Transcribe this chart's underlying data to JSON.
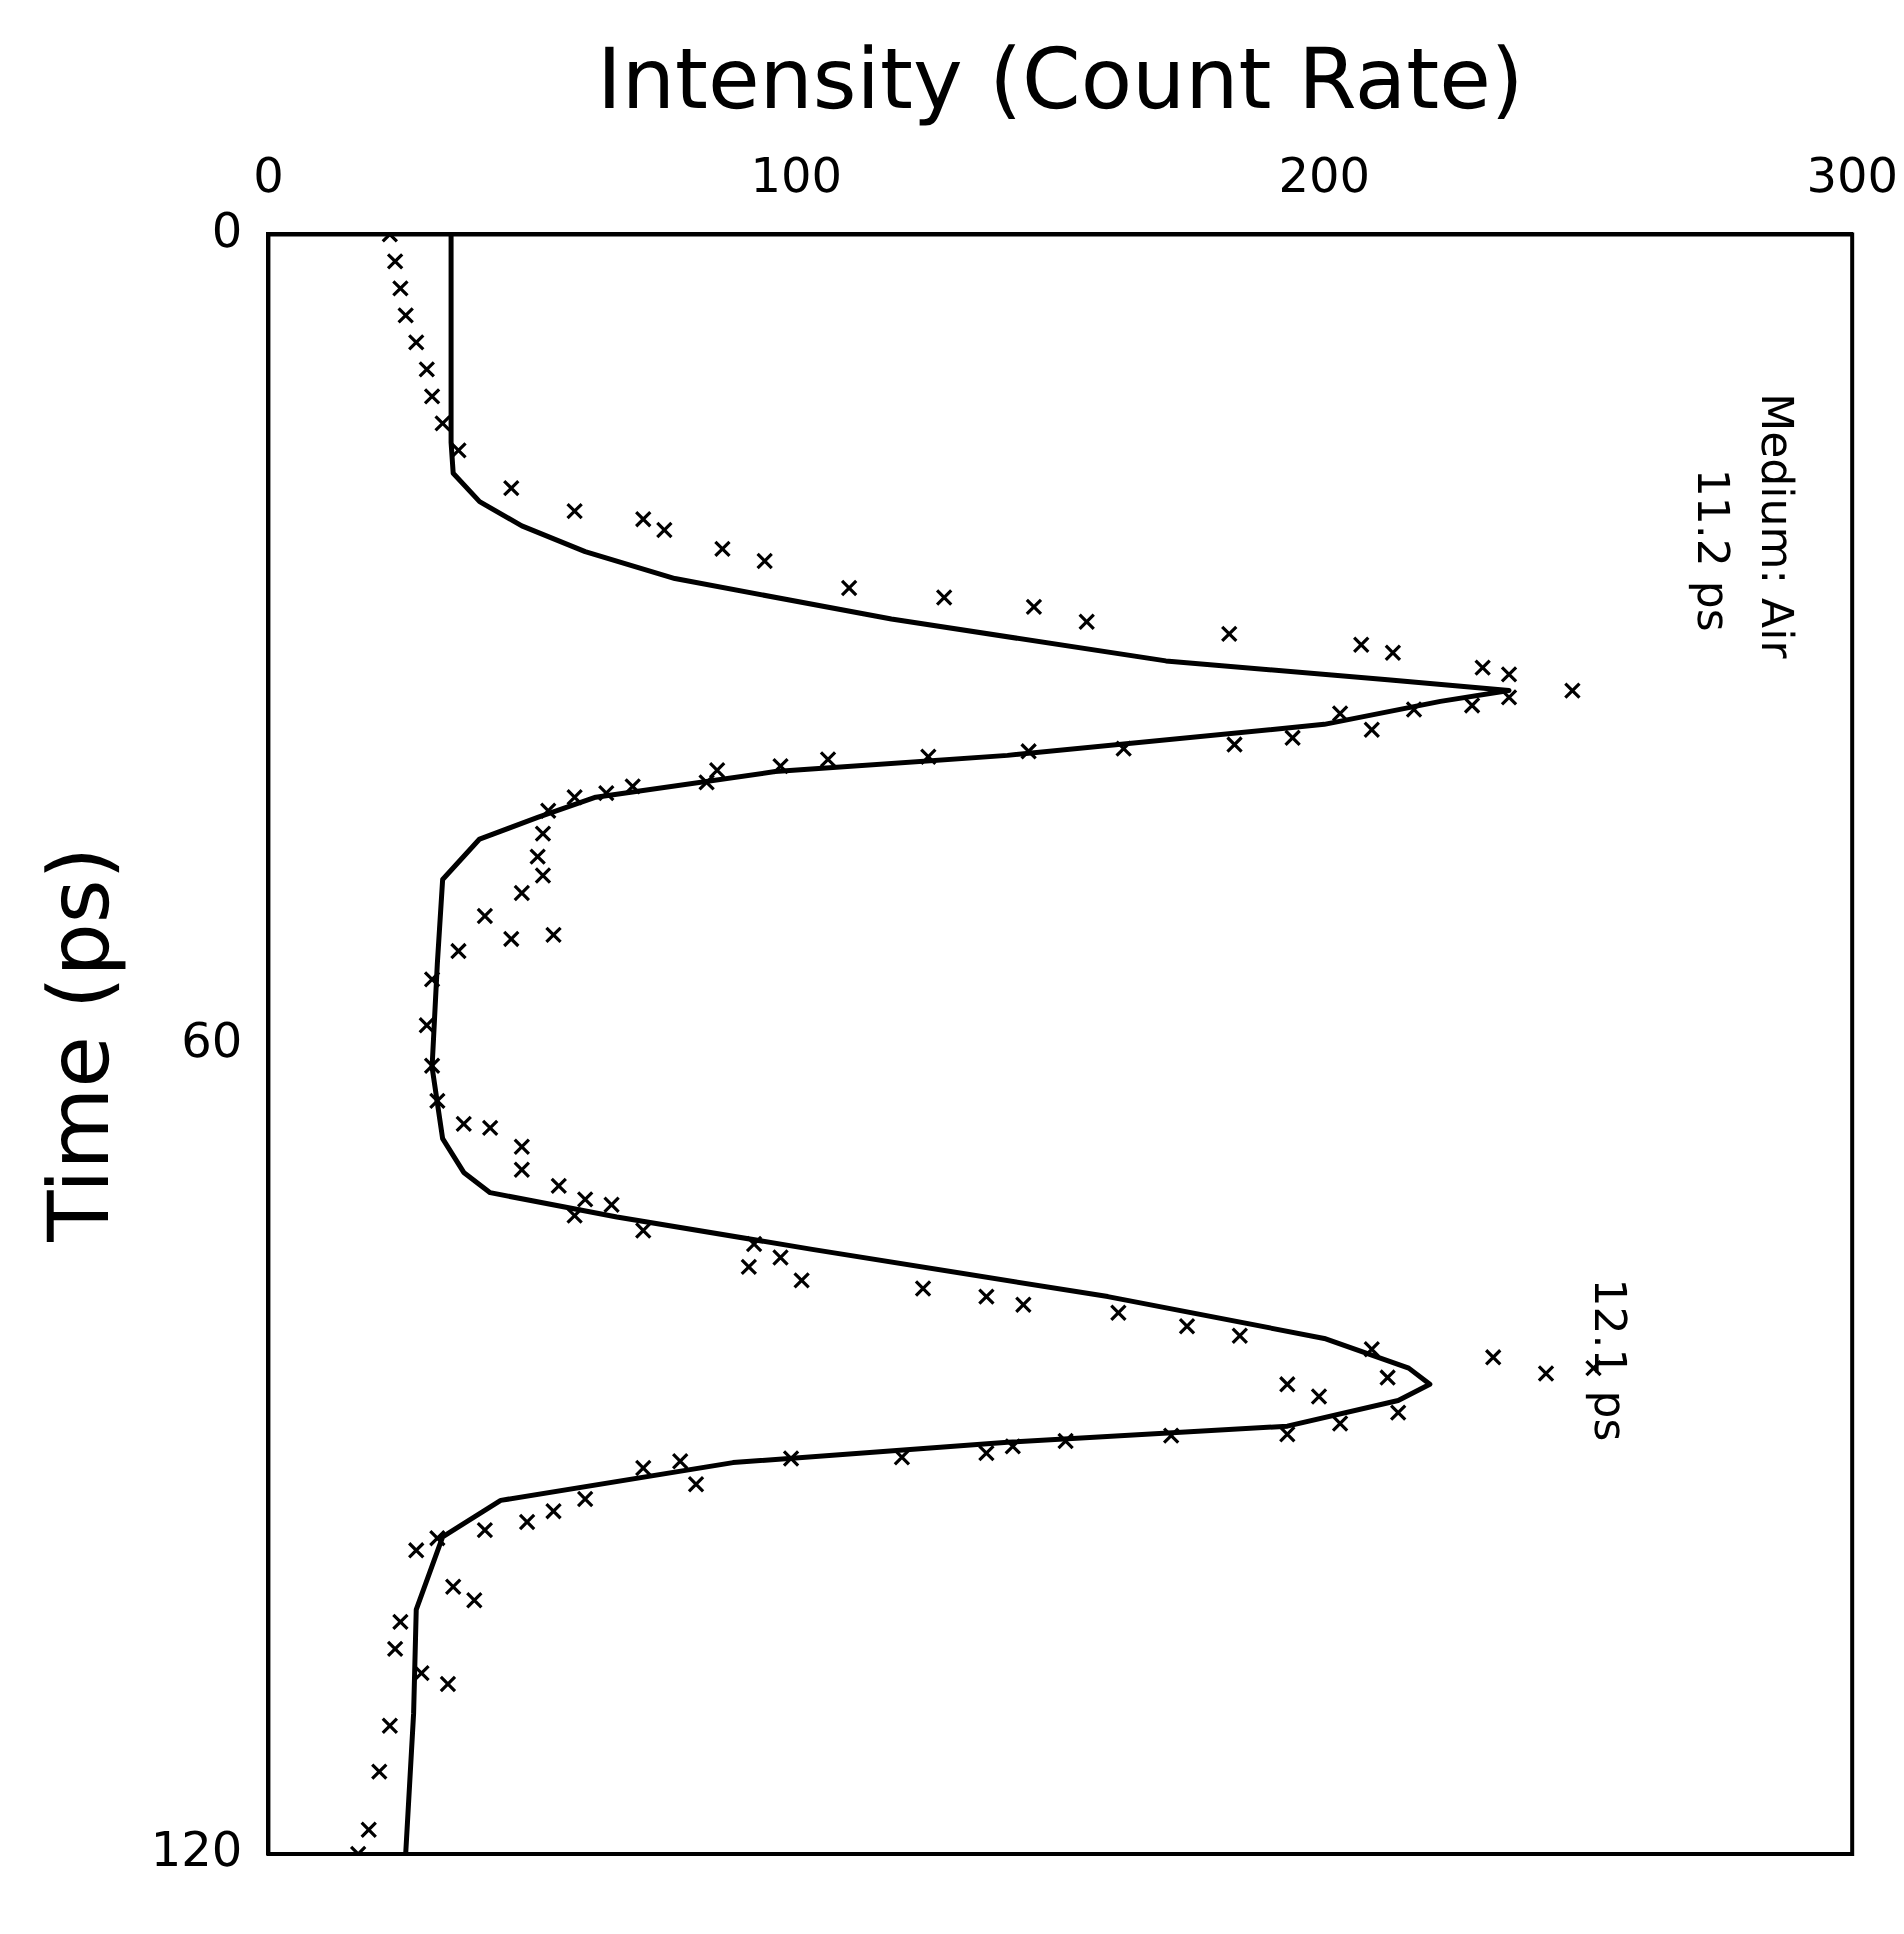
{
  "chart_data": {
    "type": "scatter",
    "xlabel": "Intensity (Count Rate)",
    "ylabel": "Time (ps)",
    "xlim": [
      0,
      300
    ],
    "xticks": [
      0,
      100,
      200,
      300
    ],
    "ylim": [
      120,
      0
    ],
    "yticks": [
      0,
      60,
      120
    ],
    "grid": false,
    "legend": false,
    "marker": "cross",
    "annotations": [
      "Medium: Air",
      "11.2 ps",
      "12.1 ps"
    ],
    "series": [
      {
        "color": "#000000",
        "values": [
          0,
          2,
          4,
          6,
          8,
          10,
          12,
          14,
          16,
          18.8,
          20.5,
          21.1,
          21.9,
          23.3,
          24.2,
          26.2,
          26.9,
          27.6,
          28.7,
          29.6,
          30.4,
          31.0,
          32.1,
          32.6,
          33.8,
          34.3,
          34.9,
          35.2,
          35.5,
          36.7,
          37.3,
          37.8,
          38.1,
          38.3,
          38.7,
          38.9,
          39.4,
          39.7,
          40.6,
          40.9,
          41.4,
          41.7,
          42.7,
          44.4,
          46.1,
          47.5,
          48.8,
          50.5,
          51.9,
          52.2,
          53.1,
          55.2,
          58.6,
          61.6,
          64.2,
          65.9,
          66.2,
          67.6,
          69.3,
          70.5,
          71.5,
          71.9,
          72.7,
          73.8,
          74.8,
          75.8,
          76.5,
          77.5,
          78.1,
          78.7,
          79.3,
          79.9,
          80.9,
          81.6,
          82.6,
          83.2,
          84.0,
          84.4,
          84.7,
          85.2,
          86.1,
          87.3,
          88.1,
          88.9,
          89.0,
          89.4,
          89.8,
          90.3,
          90.6,
          90.7,
          90.9,
          91.4,
          92.6,
          93.7,
          94.6,
          95.4,
          96.0,
          96.6,
          97.5,
          100.2,
          101.2,
          102.8,
          104.8,
          106.6,
          107.4,
          110.5,
          113.9,
          118.2,
          120
        ],
        "x": [
          23,
          24,
          25,
          26,
          28,
          30,
          31,
          33,
          36,
          46,
          58,
          71,
          75,
          86,
          94,
          110,
          128,
          145,
          155,
          182,
          207,
          213,
          230,
          235,
          247,
          235,
          228,
          217,
          203,
          209,
          194,
          183,
          162,
          144,
          125,
          106,
          97,
          85,
          83,
          69,
          64,
          58,
          53,
          52,
          51,
          52,
          48,
          41,
          54,
          46,
          36,
          31,
          30,
          31,
          32,
          37,
          42,
          48,
          48,
          55,
          60,
          65,
          58,
          71,
          92,
          97,
          91,
          101,
          124,
          136,
          143,
          161,
          174,
          184,
          209,
          232,
          251,
          242,
          212,
          193,
          199,
          214,
          203,
          193,
          171,
          151,
          141,
          136,
          120,
          99,
          78,
          71,
          81,
          60,
          54,
          49,
          41,
          32,
          28,
          35,
          39,
          25,
          24,
          29,
          34,
          23,
          21,
          19,
          17
        ]
      },
      {
        "type": "line",
        "color": "#000000",
        "marker": "none",
        "line_style": "solid",
        "values": [
          0,
          15.4,
          17.7,
          19.8,
          21.6,
          23.5,
          25.5,
          28.5,
          31.6,
          33.0,
          33.8,
          34.6,
          36.3,
          38.6,
          39.8,
          41.7,
          43.2,
          44.8,
          47.8,
          54,
          61.7,
          67,
          69.5,
          71,
          72.8,
          75.2,
          78.7,
          81.8,
          84.0,
          85.2,
          86.4,
          88.3,
          89.5,
          91,
          93.8,
          96.5,
          101.9,
          109.6,
          120
        ],
        "x": [
          34.6,
          34.6,
          35,
          40,
          48,
          60,
          77,
          118,
          170,
          212,
          235,
          222,
          200,
          140,
          96,
          62,
          51,
          40,
          33,
          32,
          31,
          33,
          37,
          42,
          66,
          103,
          159,
          200,
          216,
          220,
          214,
          193,
          140,
          88,
          44,
          33,
          28,
          27.5,
          26
        ]
      }
    ]
  }
}
